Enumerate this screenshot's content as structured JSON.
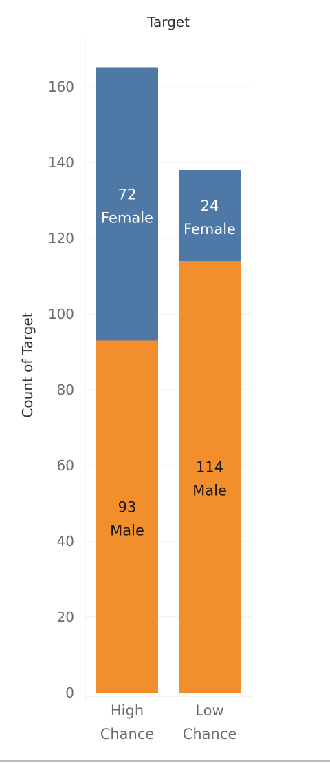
{
  "chart_data": {
    "type": "bar",
    "stacked": true,
    "title": "Target",
    "xlabel": "",
    "ylabel": "Count of Target",
    "ylim": [
      0,
      175
    ],
    "yticks": [
      0,
      20,
      40,
      60,
      80,
      100,
      120,
      140,
      160
    ],
    "grid": true,
    "legend": "none",
    "categories": [
      {
        "name": "High Chance",
        "lines": [
          "High",
          "Chance"
        ]
      },
      {
        "name": "Low Chance",
        "lines": [
          "Low",
          "Chance"
        ]
      }
    ],
    "series": [
      {
        "name": "Male",
        "color": "#f28e2b",
        "label_color": "#1a1a1a",
        "values": [
          93,
          114
        ]
      },
      {
        "name": "Female",
        "color": "#4e79a7",
        "label_color": "#ffffff",
        "values": [
          72,
          24
        ]
      }
    ]
  }
}
